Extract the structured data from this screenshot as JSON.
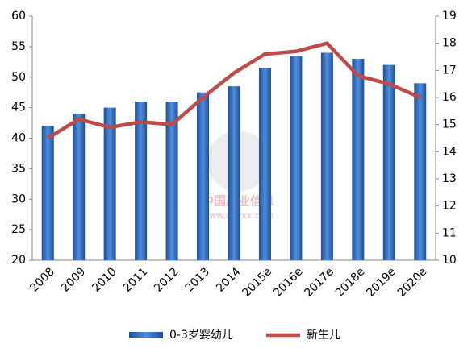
{
  "chart_data": {
    "type": "bar",
    "categories": [
      "2008",
      "2009",
      "2010",
      "2011",
      "2012",
      "2013",
      "2014",
      "2015e",
      "2016e",
      "2017e",
      "2018e",
      "2019e",
      "2020e"
    ],
    "series": [
      {
        "name": "0-3岁婴幼儿",
        "type": "bar",
        "color": "#2e6ab8",
        "values": [
          42,
          44,
          45,
          46,
          46,
          47.5,
          48.5,
          51.5,
          53.5,
          54,
          53,
          52,
          49
        ]
      },
      {
        "name": "新生儿",
        "type": "line",
        "axis": "y2",
        "color": "#be4b48",
        "values": [
          14.5,
          15.2,
          14.9,
          15.1,
          15.0,
          16.0,
          16.9,
          17.6,
          17.7,
          18.0,
          16.8,
          16.5,
          16.0
        ]
      }
    ],
    "ylim": [
      20,
      60
    ],
    "yticks": [
      20,
      25,
      30,
      35,
      40,
      45,
      50,
      55,
      60
    ],
    "y2lim": [
      10,
      19
    ],
    "y2ticks": [
      10,
      11,
      12,
      13,
      14,
      15,
      16,
      17,
      18,
      19
    ],
    "grid": false,
    "legend": "bottom",
    "watermark": {
      "name": "中国产业信息",
      "url": "www.chyxx.com"
    }
  }
}
